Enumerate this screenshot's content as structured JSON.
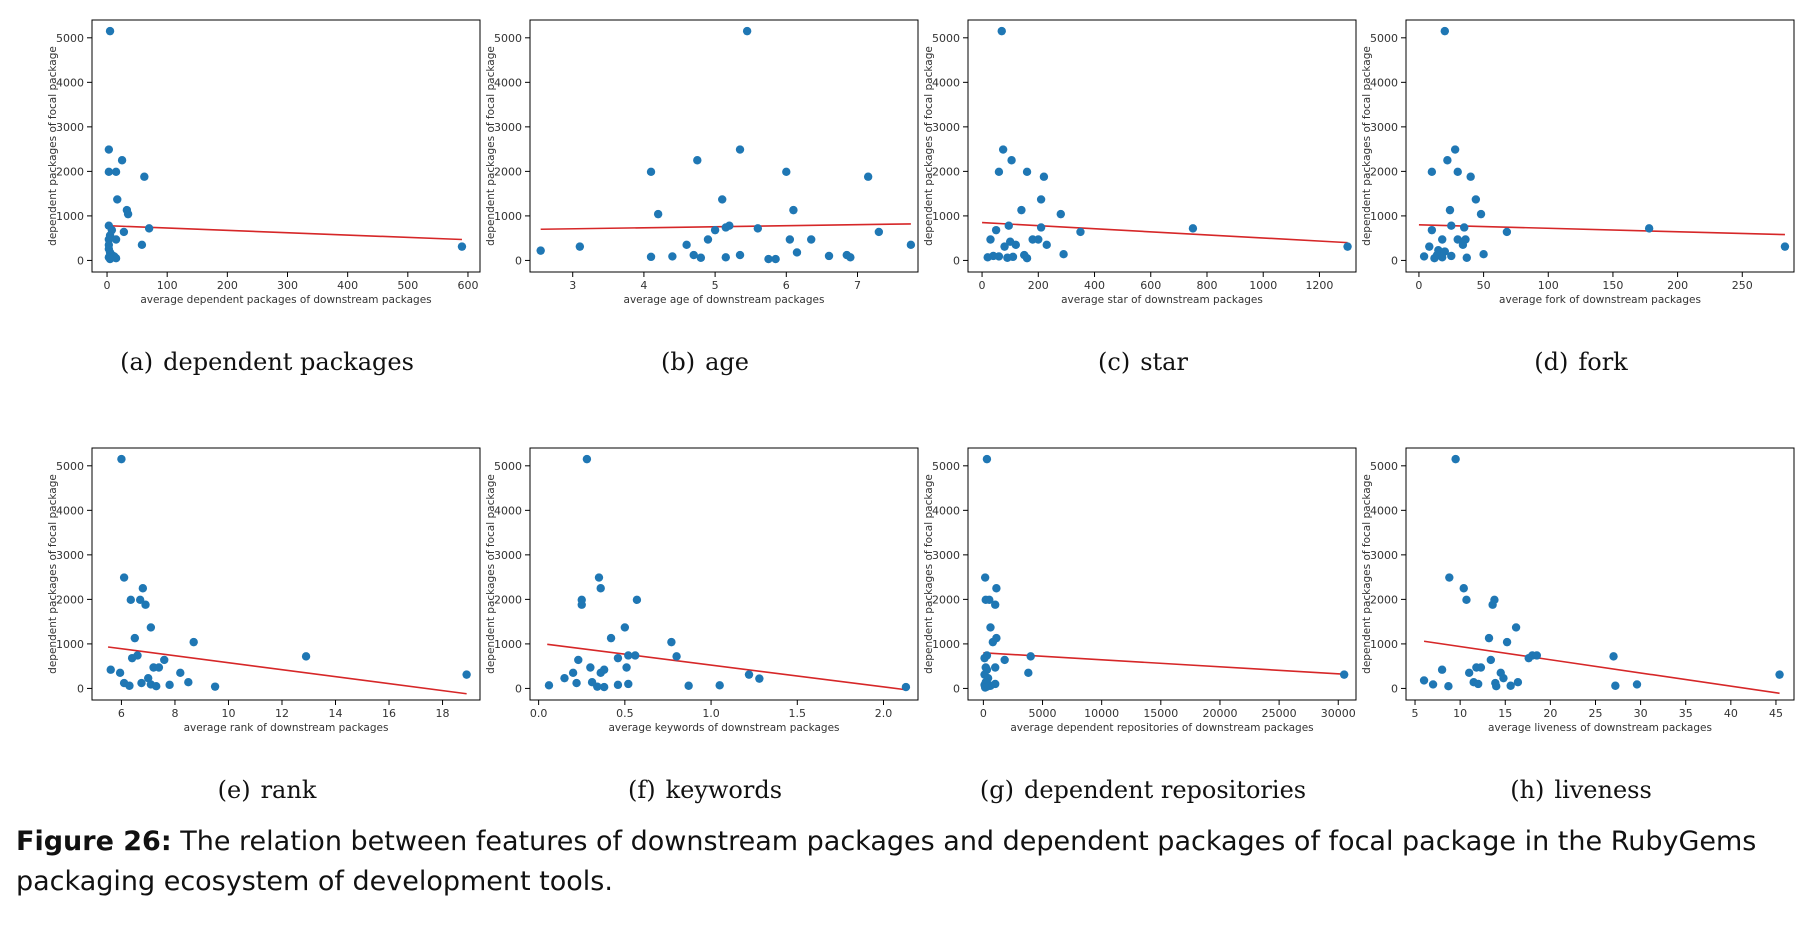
{
  "figure": {
    "label": "Figure 26:",
    "text": "The relation between features of downstream packages and dependent packages of focal package in the RubyGems packaging ecosystem of development tools."
  },
  "colors": {
    "points": "#1f77b4",
    "trend": "#d62728",
    "axes": "#000000"
  },
  "chart_data": [
    {
      "type": "scatter",
      "caption_label": "(a)",
      "caption_text": "dependent packages",
      "xlabel": "average dependent packages of downstream packages",
      "ylabel": "dependent packages of focal package",
      "xlim": [
        -25,
        620
      ],
      "ylim": [
        -260,
        5400
      ],
      "xticks": [
        0,
        100,
        200,
        300,
        400,
        500,
        600
      ],
      "xtick_labels": [
        "0",
        "100",
        "200",
        "300",
        "400",
        "500",
        "600"
      ],
      "yticks": [
        0,
        1000,
        2000,
        3000,
        4000,
        5000
      ],
      "ytick_labels": [
        "0",
        "1000",
        "2000",
        "3000",
        "4000",
        "5000"
      ],
      "trend": [
        [
          0,
          780
        ],
        [
          590,
          470
        ]
      ],
      "points": [
        [
          5,
          5150
        ],
        [
          3,
          2490
        ],
        [
          25,
          2250
        ],
        [
          3,
          1990
        ],
        [
          15,
          1990
        ],
        [
          62,
          1880
        ],
        [
          17,
          1370
        ],
        [
          33,
          1130
        ],
        [
          35,
          1040
        ],
        [
          3,
          780
        ],
        [
          70,
          720
        ],
        [
          8,
          680
        ],
        [
          28,
          640
        ],
        [
          5,
          560
        ],
        [
          3,
          470
        ],
        [
          15,
          470
        ],
        [
          58,
          350
        ],
        [
          3,
          350
        ],
        [
          3,
          260
        ],
        [
          5,
          180
        ],
        [
          8,
          120
        ],
        [
          12,
          90
        ],
        [
          3,
          70
        ],
        [
          15,
          50
        ],
        [
          5,
          30
        ],
        [
          590,
          310
        ]
      ]
    },
    {
      "type": "scatter",
      "caption_label": "(b)",
      "caption_text": "age",
      "xlabel": "average age of downstream packages",
      "ylabel": "dependent packages of focal package",
      "xlim": [
        2.4,
        7.85
      ],
      "ylim": [
        -260,
        5400
      ],
      "xticks": [
        3,
        4,
        5,
        6,
        7
      ],
      "xtick_labels": [
        "3",
        "4",
        "5",
        "6",
        "7"
      ],
      "yticks": [
        0,
        1000,
        2000,
        3000,
        4000,
        5000
      ],
      "ytick_labels": [
        "0",
        "1000",
        "2000",
        "3000",
        "4000",
        "5000"
      ],
      "trend": [
        [
          2.55,
          700
        ],
        [
          7.75,
          820
        ]
      ],
      "points": [
        [
          5.45,
          5150
        ],
        [
          5.35,
          2490
        ],
        [
          4.75,
          2250
        ],
        [
          4.1,
          1990
        ],
        [
          6.0,
          1990
        ],
        [
          7.15,
          1880
        ],
        [
          5.1,
          1370
        ],
        [
          6.1,
          1130
        ],
        [
          4.2,
          1040
        ],
        [
          5.2,
          780
        ],
        [
          5.6,
          720
        ],
        [
          7.3,
          640
        ],
        [
          5.0,
          680
        ],
        [
          5.15,
          740
        ],
        [
          6.35,
          470
        ],
        [
          6.05,
          470
        ],
        [
          4.9,
          470
        ],
        [
          4.6,
          350
        ],
        [
          7.75,
          350
        ],
        [
          3.1,
          310
        ],
        [
          2.55,
          220
        ],
        [
          6.15,
          180
        ],
        [
          5.35,
          120
        ],
        [
          4.7,
          120
        ],
        [
          6.85,
          120
        ],
        [
          6.6,
          100
        ],
        [
          4.4,
          90
        ],
        [
          4.1,
          80
        ],
        [
          4.8,
          60
        ],
        [
          5.15,
          70
        ],
        [
          6.9,
          70
        ],
        [
          5.75,
          30
        ],
        [
          5.85,
          30
        ]
      ]
    },
    {
      "type": "scatter",
      "caption_label": "(c)",
      "caption_text": "star",
      "xlabel": "average star of downstream packages",
      "ylabel": "dependent packages of focal package",
      "xlim": [
        -50,
        1330
      ],
      "ylim": [
        -260,
        5400
      ],
      "xticks": [
        0,
        200,
        400,
        600,
        800,
        1000,
        1200
      ],
      "xtick_labels": [
        "0",
        "200",
        "400",
        "600",
        "800",
        "1000",
        "1200"
      ],
      "yticks": [
        0,
        1000,
        2000,
        3000,
        4000,
        5000
      ],
      "ytick_labels": [
        "0",
        "1000",
        "2000",
        "3000",
        "4000",
        "5000"
      ],
      "trend": [
        [
          0,
          850
        ],
        [
          1300,
          400
        ]
      ],
      "points": [
        [
          70,
          5150
        ],
        [
          75,
          2490
        ],
        [
          105,
          2250
        ],
        [
          60,
          1990
        ],
        [
          160,
          1990
        ],
        [
          220,
          1880
        ],
        [
          210,
          1370
        ],
        [
          140,
          1130
        ],
        [
          280,
          1040
        ],
        [
          350,
          640
        ],
        [
          750,
          720
        ],
        [
          95,
          780
        ],
        [
          210,
          740
        ],
        [
          50,
          680
        ],
        [
          180,
          470
        ],
        [
          200,
          470
        ],
        [
          30,
          470
        ],
        [
          100,
          420
        ],
        [
          230,
          350
        ],
        [
          120,
          350
        ],
        [
          80,
          310
        ],
        [
          290,
          140
        ],
        [
          150,
          120
        ],
        [
          60,
          90
        ],
        [
          110,
          80
        ],
        [
          20,
          70
        ],
        [
          40,
          100
        ],
        [
          90,
          60
        ],
        [
          160,
          50
        ],
        [
          1300,
          310
        ]
      ]
    },
    {
      "type": "scatter",
      "caption_label": "(d)",
      "caption_text": "fork",
      "xlabel": "average fork of downstream packages",
      "ylabel": "dependent packages of focal package",
      "xlim": [
        -10,
        290
      ],
      "ylim": [
        -260,
        5400
      ],
      "xticks": [
        0,
        50,
        100,
        150,
        200,
        250
      ],
      "xtick_labels": [
        "0",
        "50",
        "100",
        "150",
        "200",
        "250"
      ],
      "yticks": [
        0,
        1000,
        2000,
        3000,
        4000,
        5000
      ],
      "ytick_labels": [
        "0",
        "1000",
        "2000",
        "3000",
        "4000",
        "5000"
      ],
      "trend": [
        [
          0,
          800
        ],
        [
          283,
          580
        ]
      ],
      "points": [
        [
          20,
          5150
        ],
        [
          28,
          2490
        ],
        [
          22,
          2250
        ],
        [
          10,
          1990
        ],
        [
          30,
          1990
        ],
        [
          40,
          1880
        ],
        [
          44,
          1370
        ],
        [
          24,
          1130
        ],
        [
          48,
          1040
        ],
        [
          68,
          640
        ],
        [
          178,
          720
        ],
        [
          35,
          740
        ],
        [
          25,
          780
        ],
        [
          10,
          680
        ],
        [
          30,
          470
        ],
        [
          18,
          470
        ],
        [
          36,
          470
        ],
        [
          34,
          350
        ],
        [
          8,
          310
        ],
        [
          15,
          230
        ],
        [
          20,
          200
        ],
        [
          50,
          140
        ],
        [
          14,
          120
        ],
        [
          25,
          100
        ],
        [
          4,
          90
        ],
        [
          18,
          70
        ],
        [
          37,
          60
        ],
        [
          12,
          50
        ],
        [
          283,
          310
        ]
      ]
    },
    {
      "type": "scatter",
      "caption_label": "(e)",
      "caption_text": "rank",
      "xlabel": "average rank of downstream packages",
      "ylabel": "dependent packages of focal package",
      "xlim": [
        4.9,
        19.4
      ],
      "ylim": [
        -260,
        5400
      ],
      "xticks": [
        6,
        8,
        10,
        12,
        14,
        16,
        18
      ],
      "xtick_labels": [
        "6",
        "8",
        "10",
        "12",
        "14",
        "16",
        "18"
      ],
      "yticks": [
        0,
        1000,
        2000,
        3000,
        4000,
        5000
      ],
      "ytick_labels": [
        "0",
        "1000",
        "2000",
        "3000",
        "4000",
        "5000"
      ],
      "trend": [
        [
          5.5,
          930
        ],
        [
          18.9,
          -120
        ]
      ],
      "points": [
        [
          6.0,
          5150
        ],
        [
          6.1,
          2490
        ],
        [
          6.8,
          2250
        ],
        [
          6.35,
          1990
        ],
        [
          6.7,
          1990
        ],
        [
          6.9,
          1880
        ],
        [
          7.1,
          1370
        ],
        [
          6.5,
          1130
        ],
        [
          8.7,
          1040
        ],
        [
          12.9,
          720
        ],
        [
          7.6,
          640
        ],
        [
          6.6,
          740
        ],
        [
          6.4,
          680
        ],
        [
          7.2,
          470
        ],
        [
          7.4,
          470
        ],
        [
          5.6,
          420
        ],
        [
          8.2,
          350
        ],
        [
          5.95,
          350
        ],
        [
          18.9,
          310
        ],
        [
          7.0,
          230
        ],
        [
          8.5,
          140
        ],
        [
          6.1,
          120
        ],
        [
          7.1,
          90
        ],
        [
          7.8,
          80
        ],
        [
          6.3,
          60
        ],
        [
          9.5,
          40
        ],
        [
          7.3,
          50
        ],
        [
          6.75,
          120
        ]
      ]
    },
    {
      "type": "scatter",
      "caption_label": "(f)",
      "caption_text": "keywords",
      "xlabel": "average keywords of downstream packages",
      "ylabel": "dependent packages of focal package",
      "xlim": [
        -0.05,
        2.2
      ],
      "ylim": [
        -260,
        5400
      ],
      "xticks": [
        0.0,
        0.5,
        1.0,
        1.5,
        2.0
      ],
      "xtick_labels": [
        "0.0",
        "0.5",
        "1.0",
        "1.5",
        "2.0"
      ],
      "yticks": [
        0,
        1000,
        2000,
        3000,
        4000,
        5000
      ],
      "ytick_labels": [
        "0",
        "1000",
        "2000",
        "3000",
        "4000",
        "5000"
      ],
      "trend": [
        [
          0.05,
          990
        ],
        [
          2.13,
          -30
        ]
      ],
      "points": [
        [
          0.28,
          5150
        ],
        [
          0.35,
          2490
        ],
        [
          0.36,
          2250
        ],
        [
          0.25,
          1990
        ],
        [
          0.57,
          1990
        ],
        [
          0.25,
          1880
        ],
        [
          0.5,
          1370
        ],
        [
          0.42,
          1130
        ],
        [
          0.77,
          1040
        ],
        [
          0.8,
          720
        ],
        [
          0.52,
          740
        ],
        [
          0.56,
          740
        ],
        [
          0.23,
          640
        ],
        [
          0.46,
          680
        ],
        [
          0.3,
          470
        ],
        [
          0.51,
          470
        ],
        [
          0.38,
          420
        ],
        [
          0.2,
          350
        ],
        [
          0.36,
          350
        ],
        [
          1.22,
          310
        ],
        [
          0.15,
          230
        ],
        [
          1.28,
          220
        ],
        [
          0.31,
          140
        ],
        [
          0.22,
          120
        ],
        [
          0.52,
          100
        ],
        [
          0.46,
          80
        ],
        [
          0.06,
          70
        ],
        [
          0.87,
          60
        ],
        [
          1.05,
          70
        ],
        [
          0.34,
          40
        ],
        [
          0.38,
          30
        ],
        [
          2.13,
          30
        ]
      ]
    },
    {
      "type": "scatter",
      "caption_label": "(g)",
      "caption_text": "dependent repositories",
      "xlabel": "average dependent repositories of downstream packages",
      "ylabel": "dependent packages of focal package",
      "xlim": [
        -1300,
        31500
      ],
      "ylim": [
        -260,
        5400
      ],
      "xticks": [
        0,
        5000,
        10000,
        15000,
        20000,
        25000,
        30000
      ],
      "xtick_labels": [
        "0",
        "5000",
        "10000",
        "15000",
        "20000",
        "25000",
        "30000"
      ],
      "yticks": [
        0,
        1000,
        2000,
        3000,
        4000,
        5000
      ],
      "ytick_labels": [
        "0",
        "1000",
        "2000",
        "3000",
        "4000",
        "5000"
      ],
      "trend": [
        [
          0,
          800
        ],
        [
          30500,
          320
        ]
      ],
      "points": [
        [
          300,
          5150
        ],
        [
          150,
          2490
        ],
        [
          1100,
          2250
        ],
        [
          200,
          1990
        ],
        [
          500,
          1990
        ],
        [
          1000,
          1880
        ],
        [
          600,
          1370
        ],
        [
          1100,
          1130
        ],
        [
          800,
          1040
        ],
        [
          4000,
          720
        ],
        [
          1800,
          640
        ],
        [
          300,
          740
        ],
        [
          100,
          680
        ],
        [
          200,
          470
        ],
        [
          1000,
          470
        ],
        [
          300,
          420
        ],
        [
          3800,
          350
        ],
        [
          100,
          310
        ],
        [
          400,
          230
        ],
        [
          200,
          140
        ],
        [
          1000,
          100
        ],
        [
          100,
          80
        ],
        [
          600,
          60
        ],
        [
          300,
          40
        ],
        [
          150,
          20
        ],
        [
          30500,
          310
        ]
      ]
    },
    {
      "type": "scatter",
      "caption_label": "(h)",
      "caption_text": "liveness",
      "xlabel": "average liveness of downstream packages",
      "ylabel": "dependent packages of focal package",
      "xlim": [
        4.0,
        47.0
      ],
      "ylim": [
        -260,
        5400
      ],
      "xticks": [
        5,
        10,
        15,
        20,
        25,
        30,
        35,
        40,
        45
      ],
      "xtick_labels": [
        "5",
        "10",
        "15",
        "20",
        "25",
        "30",
        "35",
        "40",
        "45"
      ],
      "yticks": [
        0,
        1000,
        2000,
        3000,
        4000,
        5000
      ],
      "ytick_labels": [
        "0",
        "1000",
        "2000",
        "3000",
        "4000",
        "5000"
      ],
      "trend": [
        [
          6.0,
          1060
        ],
        [
          45.4,
          -110
        ]
      ],
      "points": [
        [
          9.5,
          5150
        ],
        [
          8.8,
          2490
        ],
        [
          10.4,
          2250
        ],
        [
          10.7,
          1990
        ],
        [
          13.8,
          1990
        ],
        [
          13.6,
          1880
        ],
        [
          16.2,
          1370
        ],
        [
          13.2,
          1130
        ],
        [
          15.2,
          1040
        ],
        [
          27.0,
          720
        ],
        [
          18.0,
          740
        ],
        [
          18.5,
          740
        ],
        [
          13.4,
          640
        ],
        [
          17.6,
          680
        ],
        [
          11.8,
          470
        ],
        [
          12.3,
          470
        ],
        [
          8.0,
          420
        ],
        [
          11.0,
          350
        ],
        [
          14.5,
          350
        ],
        [
          45.4,
          310
        ],
        [
          14.8,
          230
        ],
        [
          16.4,
          140
        ],
        [
          11.5,
          140
        ],
        [
          6.0,
          180
        ],
        [
          12.0,
          100
        ],
        [
          13.9,
          120
        ],
        [
          7.0,
          90
        ],
        [
          15.6,
          60
        ],
        [
          8.7,
          50
        ],
        [
          27.2,
          60
        ],
        [
          29.6,
          90
        ],
        [
          14.0,
          50
        ]
      ]
    }
  ]
}
